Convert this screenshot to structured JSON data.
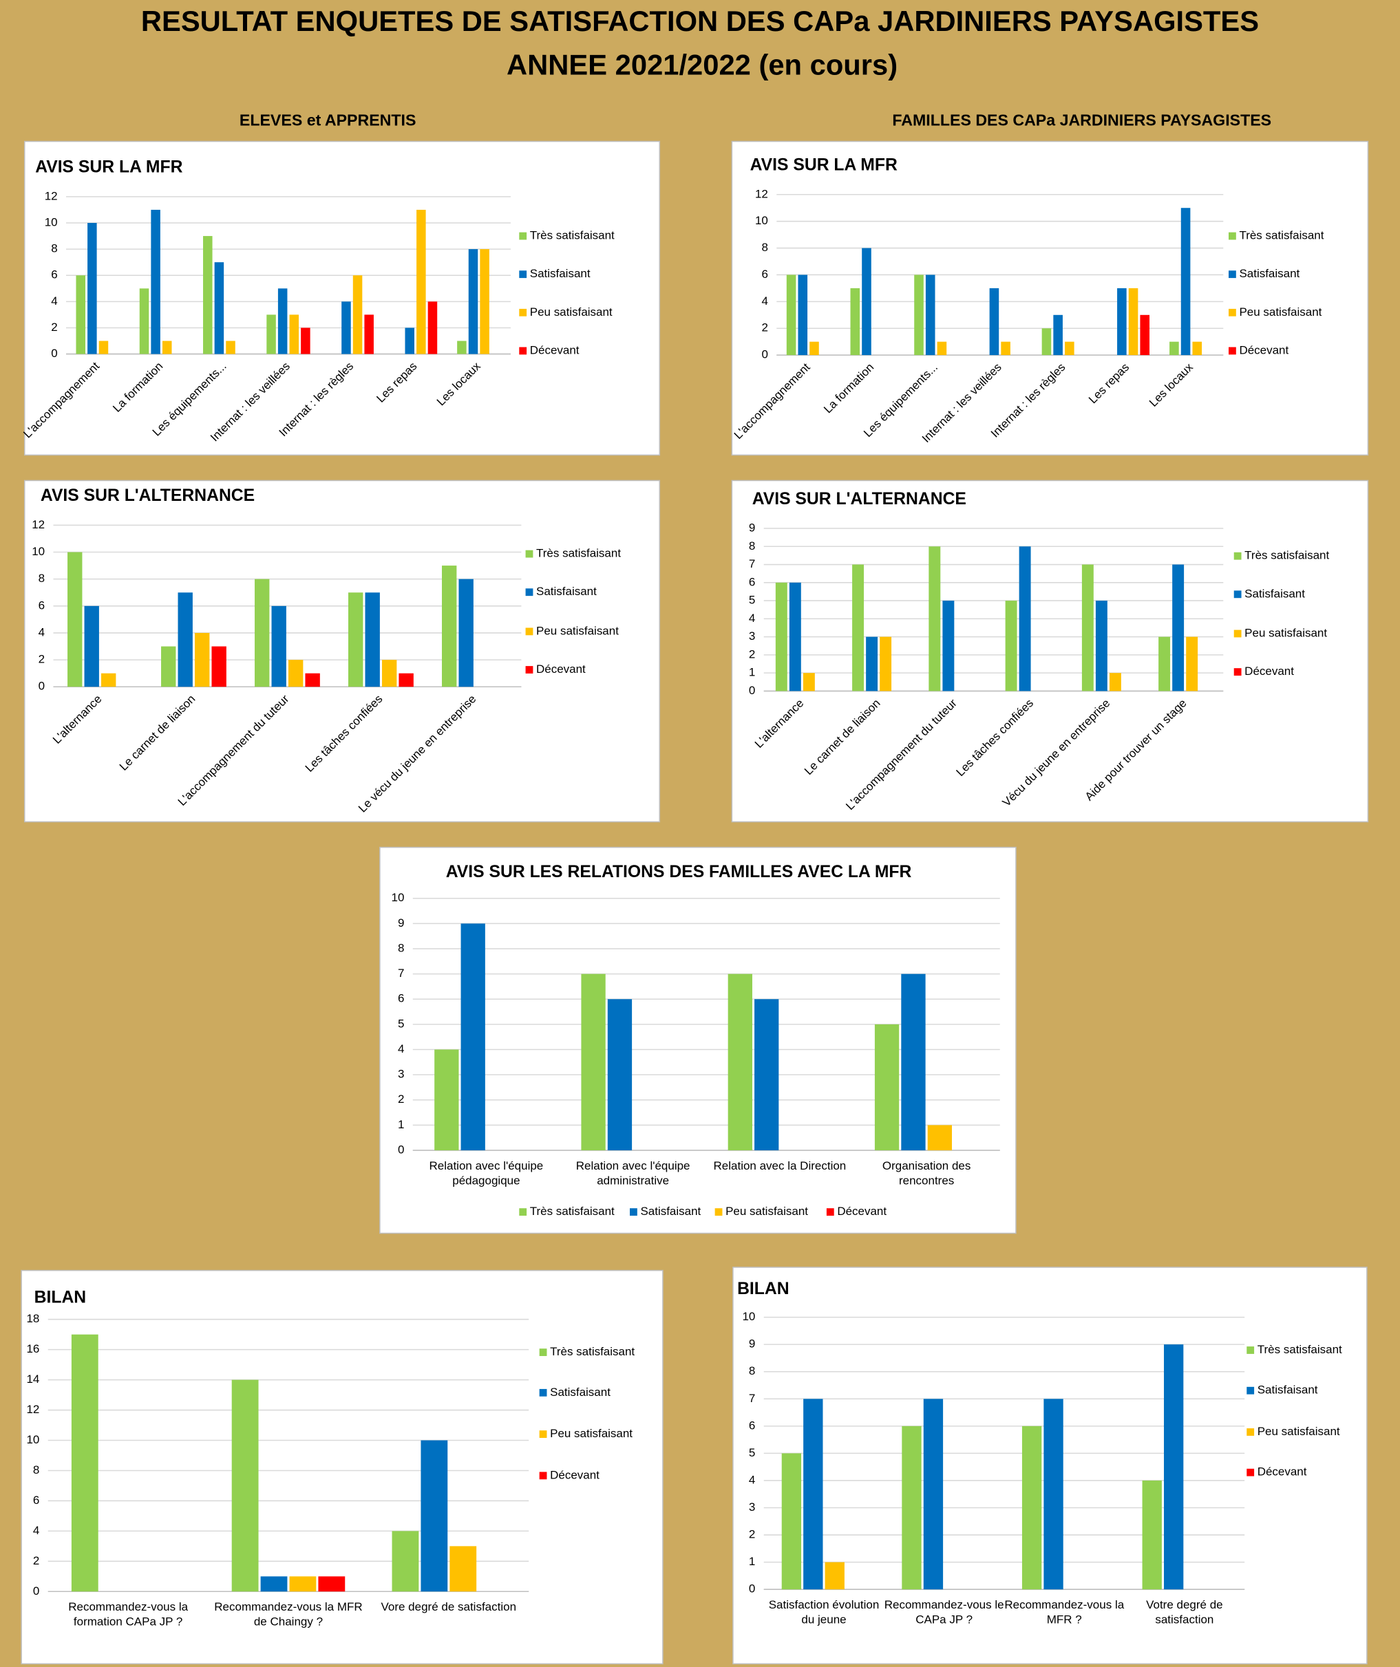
{
  "header": {
    "title": [
      "RESULTAT ENQUETES DE SATISFACTION DES CAPa JARDINIERS PAYSAGISTES",
      "ANNEE 2021/2022 (en cours)"
    ],
    "left": "ELEVES et APPRENTIS",
    "right": "FAMILLES DES CAPa JARDINIERS PAYSAGISTES"
  },
  "chart_data": [
    {
      "type": "bar",
      "title": "AVIS SUR LA MFR",
      "categories": [
        "L'accompagnement",
        "La formation",
        "Les équipements...",
        "Internat : les veillées",
        "Internat : les règles",
        "Les repas",
        "Les locaux"
      ],
      "series": [
        {
          "name": "Très satisfaisant",
          "color": "#92d050",
          "values": [
            6,
            5,
            9,
            3,
            0,
            0,
            1
          ]
        },
        {
          "name": "Satisfaisant",
          "color": "#0070c0",
          "values": [
            10,
            11,
            7,
            5,
            4,
            2,
            8
          ]
        },
        {
          "name": "Peu satisfaisant",
          "color": "#ffc000",
          "values": [
            1,
            1,
            1,
            3,
            6,
            11,
            8
          ]
        },
        {
          "name": "Décevant",
          "color": "#ff0000",
          "values": [
            0,
            0,
            0,
            2,
            3,
            4,
            0
          ]
        }
      ],
      "ylim": [
        0,
        12
      ],
      "yticks": [
        0,
        2,
        4,
        6,
        8,
        10,
        12
      ],
      "grid": true,
      "legend": "right"
    },
    {
      "type": "bar",
      "title": "AVIS SUR LA MFR",
      "categories": [
        "L'accompagnement",
        "La formation",
        "Les équipements...",
        "Internat : les veillées",
        "Internat : les règles",
        "Les repas",
        "Les locaux"
      ],
      "series": [
        {
          "name": "Très satisfaisant",
          "color": "#92d050",
          "values": [
            6,
            5,
            6,
            0,
            2,
            0,
            1
          ]
        },
        {
          "name": "Satisfaisant",
          "color": "#0070c0",
          "values": [
            6,
            8,
            6,
            5,
            3,
            5,
            11
          ]
        },
        {
          "name": "Peu satisfaisant",
          "color": "#ffc000",
          "values": [
            1,
            0,
            1,
            1,
            1,
            5,
            1
          ]
        },
        {
          "name": "Décevant",
          "color": "#ff0000",
          "values": [
            0,
            0,
            0,
            0,
            0,
            3,
            0
          ]
        }
      ],
      "ylim": [
        0,
        12
      ],
      "yticks": [
        0,
        2,
        4,
        6,
        8,
        10,
        12
      ],
      "grid": true,
      "legend": "right"
    },
    {
      "type": "bar",
      "title": "AVIS SUR L'ALTERNANCE",
      "categories": [
        "L'alternance",
        "Le carnet de liaison",
        "L'accompagnement du tuteur",
        "Les tâches confiées",
        "Le vécu du jeune en entreprise"
      ],
      "series": [
        {
          "name": "Très satisfaisant",
          "color": "#92d050",
          "values": [
            10,
            3,
            8,
            7,
            9
          ]
        },
        {
          "name": "Satisfaisant",
          "color": "#0070c0",
          "values": [
            6,
            7,
            6,
            7,
            8
          ]
        },
        {
          "name": "Peu satisfaisant",
          "color": "#ffc000",
          "values": [
            1,
            4,
            2,
            2,
            0
          ]
        },
        {
          "name": "Décevant",
          "color": "#ff0000",
          "values": [
            0,
            3,
            1,
            1,
            0
          ]
        }
      ],
      "ylim": [
        0,
        12
      ],
      "yticks": [
        0,
        2,
        4,
        6,
        8,
        10,
        12
      ],
      "grid": true,
      "legend": "right"
    },
    {
      "type": "bar",
      "title": "AVIS SUR L'ALTERNANCE",
      "categories": [
        "L'alternance",
        "Le carnet de liaison",
        "L'accompagnement du tuteur",
        "Les tâches confiées",
        "Vécu du jeune en entreprise",
        "Aide pour trouver un stage"
      ],
      "series": [
        {
          "name": "Très satisfaisant",
          "color": "#92d050",
          "values": [
            6,
            7,
            8,
            5,
            7,
            3
          ]
        },
        {
          "name": "Satisfaisant",
          "color": "#0070c0",
          "values": [
            6,
            3,
            5,
            8,
            5,
            7
          ]
        },
        {
          "name": "Peu satisfaisant",
          "color": "#ffc000",
          "values": [
            1,
            3,
            0,
            0,
            1,
            3
          ]
        },
        {
          "name": "Décevant",
          "color": "#ff0000",
          "values": [
            0,
            0,
            0,
            0,
            0,
            0
          ]
        }
      ],
      "ylim": [
        0,
        9
      ],
      "yticks": [
        0,
        1,
        2,
        3,
        4,
        5,
        6,
        7,
        8,
        9
      ],
      "grid": true,
      "legend": "right"
    },
    {
      "type": "bar",
      "title": "AVIS SUR LES RELATIONS DES FAMILLES AVEC LA MFR",
      "categories": [
        "Relation avec l'équipe pédagogique",
        "Relation avec l'équipe administrative",
        "Relation avec la Direction",
        "Organisation des rencontres"
      ],
      "series": [
        {
          "name": "Très satisfaisant",
          "color": "#92d050",
          "values": [
            4,
            7,
            7,
            5
          ]
        },
        {
          "name": "Satisfaisant",
          "color": "#0070c0",
          "values": [
            9,
            6,
            6,
            7
          ]
        },
        {
          "name": "Peu satisfaisant",
          "color": "#ffc000",
          "values": [
            0,
            0,
            0,
            1
          ]
        },
        {
          "name": "Décevant",
          "color": "#ff0000",
          "values": [
            0,
            0,
            0,
            0
          ]
        }
      ],
      "ylim": [
        0,
        10
      ],
      "yticks": [
        0,
        1,
        2,
        3,
        4,
        5,
        6,
        7,
        8,
        9,
        10
      ],
      "grid": true,
      "legend": "bottom"
    },
    {
      "type": "bar",
      "title": "BILAN",
      "categories": [
        "Recommandez-vous la formation CAPa JP ?",
        "Recommandez-vous la MFR de Chaingy ?",
        "Vore degré de satisfaction"
      ],
      "series": [
        {
          "name": "Très satisfaisant",
          "color": "#92d050",
          "values": [
            17,
            14,
            4
          ]
        },
        {
          "name": "Satisfaisant",
          "color": "#0070c0",
          "values": [
            0,
            1,
            10
          ]
        },
        {
          "name": "Peu satisfaisant",
          "color": "#ffc000",
          "values": [
            0,
            1,
            3
          ]
        },
        {
          "name": "Décevant",
          "color": "#ff0000",
          "values": [
            0,
            1,
            0
          ]
        }
      ],
      "ylim": [
        0,
        18
      ],
      "yticks": [
        0,
        2,
        4,
        6,
        8,
        10,
        12,
        14,
        16,
        18
      ],
      "grid": true,
      "legend": "right"
    },
    {
      "type": "bar",
      "title": "BILAN",
      "categories": [
        "Satisfaction évolution du jeune",
        "Recommandez-vous le CAPa JP ?",
        "Recommandez-vous la MFR  ?",
        "Votre degré de satisfaction"
      ],
      "series": [
        {
          "name": "Très satisfaisant",
          "color": "#92d050",
          "values": [
            5,
            6,
            6,
            4
          ]
        },
        {
          "name": "Satisfaisant",
          "color": "#0070c0",
          "values": [
            7,
            7,
            7,
            9
          ]
        },
        {
          "name": "Peu satisfaisant",
          "color": "#ffc000",
          "values": [
            1,
            0,
            0,
            0
          ]
        },
        {
          "name": "Décevant",
          "color": "#ff0000",
          "values": [
            0,
            0,
            0,
            0
          ]
        }
      ],
      "ylim": [
        0,
        10
      ],
      "yticks": [
        0,
        1,
        2,
        3,
        4,
        5,
        6,
        7,
        8,
        9,
        10
      ],
      "grid": true,
      "legend": "right"
    }
  ]
}
